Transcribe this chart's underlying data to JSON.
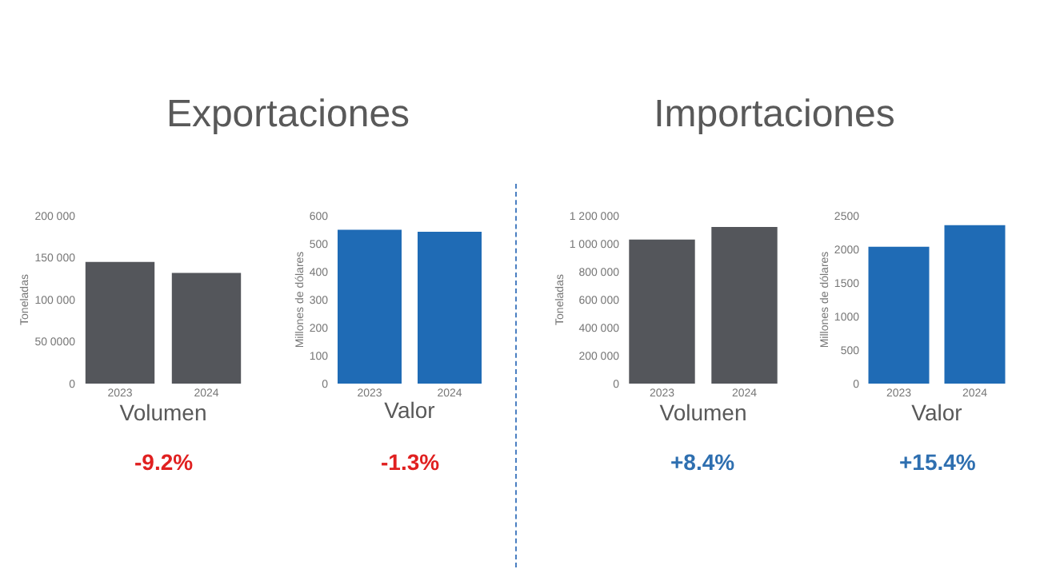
{
  "chart_data": [
    {
      "type": "bar",
      "title": "Exportaciones",
      "xlabel": "Volumen",
      "ylabel": "Toneladas",
      "categories": [
        "2023",
        "2024"
      ],
      "values": [
        145000,
        132000
      ],
      "color": "#54565b",
      "ylim": [
        0,
        200000
      ],
      "yticks": [
        0,
        {
          "value": 50000,
          "label": "50 0000"
        },
        {
          "value": 100000,
          "label": "100 000"
        },
        {
          "value": 150000,
          "label": "150 000"
        },
        {
          "value": 200000,
          "label": "200 000"
        }
      ],
      "annotations": [
        "-9.2%"
      ]
    },
    {
      "type": "bar",
      "xlabel": "Valor",
      "ylabel": "Millones de dólares",
      "categories": [
        "2023",
        "2024"
      ],
      "values": [
        550,
        543
      ],
      "color": "#1f6bb5",
      "ylim": [
        0,
        600
      ],
      "yticks": [
        0,
        100,
        200,
        300,
        400,
        500,
        600
      ],
      "annotations": [
        "-1.3%"
      ]
    },
    {
      "type": "bar",
      "title": "Importaciones",
      "xlabel": "Volumen",
      "ylabel": "Toneladas",
      "categories": [
        "2023",
        "2024"
      ],
      "values": [
        1030000,
        1120000
      ],
      "color": "#54565b",
      "ylim": [
        0,
        1200000
      ],
      "yticks": [
        0,
        {
          "value": 200000,
          "label": "200 000"
        },
        {
          "value": 400000,
          "label": "400 000"
        },
        {
          "value": 600000,
          "label": "600 000"
        },
        {
          "value": 800000,
          "label": "800 000"
        },
        {
          "value": 1000000,
          "label": "1 000 000"
        },
        {
          "value": 1200000,
          "label": "1 200 000"
        }
      ],
      "annotations": [
        "+8.4%"
      ]
    },
    {
      "type": "bar",
      "xlabel": "Valor",
      "ylabel": "Millones de dólares",
      "categories": [
        "2023",
        "2024"
      ],
      "values": [
        2040,
        2360
      ],
      "color": "#1f6bb5",
      "ylim": [
        0,
        2500
      ],
      "yticks": [
        0,
        500,
        1000,
        1500,
        2000,
        2500
      ],
      "annotations": [
        "+15.4%"
      ]
    }
  ]
}
